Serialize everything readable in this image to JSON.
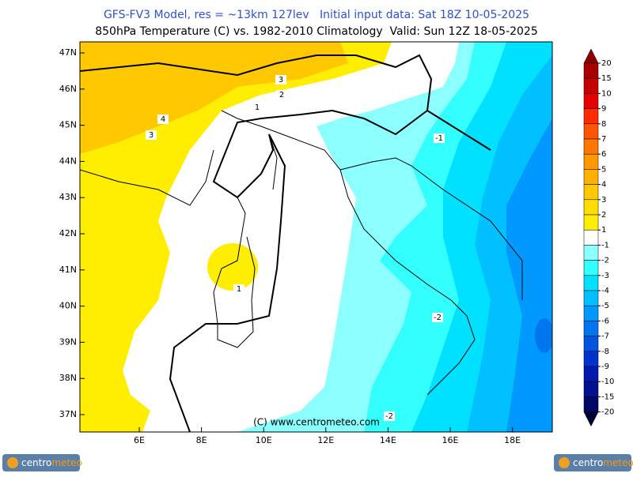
{
  "header": {
    "line1": "GFS-FV3 Model, res = ~13km 127lev   Initial input data: Sat 18Z 10-05-2025",
    "line2": "850hPa Temperature (C) vs. 1982-2010 Climatology  Valid: Sun 12Z 18-05-2025"
  },
  "map": {
    "lon_labels": [
      "6E",
      "8E",
      "10E",
      "12E",
      "14E",
      "16E",
      "18E"
    ],
    "lat_labels": [
      "47N",
      "46N",
      "45N",
      "44N",
      "43N",
      "42N",
      "41N",
      "40N",
      "39N",
      "38N",
      "37N"
    ],
    "contour_labels": [
      "3",
      "2",
      "4",
      "3",
      "1",
      "-1",
      "1",
      "-2",
      "-2"
    ],
    "watermark": "(C) www.centrometeo.com"
  },
  "colorbar": {
    "labels": [
      20,
      15,
      10,
      9,
      8,
      7,
      6,
      5,
      4,
      3,
      2,
      1,
      -1,
      -2,
      -3,
      -4,
      -5,
      -6,
      -7,
      -8,
      -9,
      -10,
      -15,
      -20
    ],
    "colors": [
      "#8c0000",
      "#a80000",
      "#c40000",
      "#e60000",
      "#ff2a00",
      "#ff5500",
      "#ff7700",
      "#ff9900",
      "#ffb000",
      "#ffc800",
      "#ffdd00",
      "#ffee00",
      "#ffffff",
      "#8cffff",
      "#33ffff",
      "#00e1ff",
      "#00c0ff",
      "#0099ff",
      "#0077f0",
      "#0055e0",
      "#0033cc",
      "#0019b0",
      "#001090",
      "#000a66",
      "#000033"
    ]
  },
  "logo": {
    "part1": "centro",
    "part2": "meteo"
  }
}
